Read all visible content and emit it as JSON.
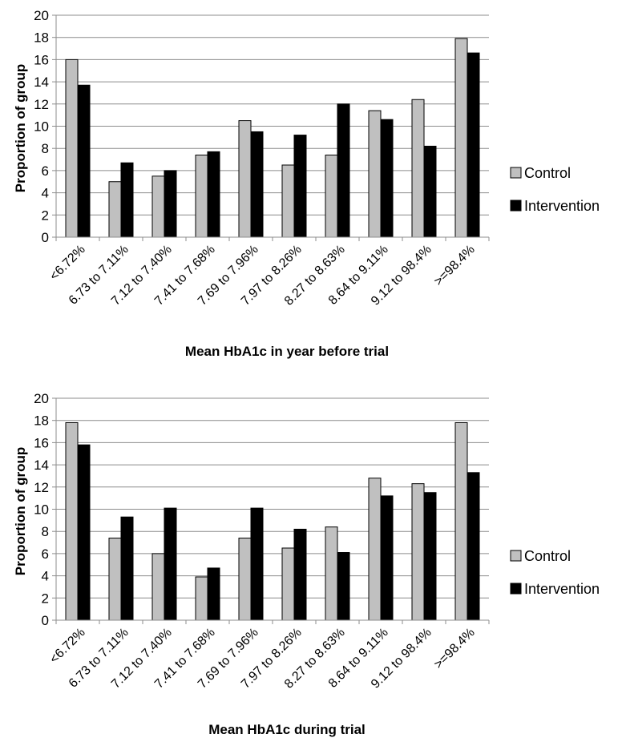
{
  "chart_data": [
    {
      "type": "bar",
      "xlabel": "Mean HbA1c in year before trial",
      "ylabel": "Proportion of group",
      "ylim": [
        0,
        20
      ],
      "yticks": [
        0,
        2,
        4,
        6,
        8,
        10,
        12,
        14,
        16,
        18,
        20
      ],
      "grid": "horizontal",
      "legend_position": "right",
      "categories": [
        "<6.72%",
        "6.73 to 7.11%",
        "7.12 to 7.40%",
        "7.41 to 7.68%",
        "7.69 to 7.96%",
        "7.97 to 8.26%",
        "8.27 to 8.63%",
        "8.64 to 9.11%",
        "9.12 to 98.4%",
        ">=98.4%"
      ],
      "series": [
        {
          "name": "Control",
          "color": "#c0c0c0",
          "values": [
            16.0,
            5.0,
            5.5,
            7.4,
            10.5,
            6.5,
            7.4,
            11.4,
            12.4,
            17.9
          ]
        },
        {
          "name": "Intervention",
          "color": "#000000",
          "values": [
            13.7,
            6.7,
            6.0,
            7.7,
            9.5,
            9.2,
            12.0,
            10.6,
            8.2,
            16.6
          ]
        }
      ]
    },
    {
      "type": "bar",
      "xlabel": "Mean HbA1c during trial",
      "ylabel": "Proportion of group",
      "ylim": [
        0,
        20
      ],
      "yticks": [
        0,
        2,
        4,
        6,
        8,
        10,
        12,
        14,
        16,
        18,
        20
      ],
      "grid": "horizontal",
      "legend_position": "right",
      "categories": [
        "<6.72%",
        "6.73 to 7.11%",
        "7.12 to 7.40%",
        "7.41 to 7.68%",
        "7.69 to 7.96%",
        "7.97 to 8.26%",
        "8.27 to 8.63%",
        "8.64 to 9.11%",
        "9.12 to 98.4%",
        ">=98.4%"
      ],
      "series": [
        {
          "name": "Control",
          "color": "#c0c0c0",
          "values": [
            17.8,
            7.4,
            6.0,
            3.9,
            7.4,
            6.5,
            8.4,
            12.8,
            12.3,
            17.8
          ]
        },
        {
          "name": "Intervention",
          "color": "#000000",
          "values": [
            15.8,
            9.3,
            10.1,
            4.7,
            10.1,
            8.2,
            6.1,
            11.2,
            11.5,
            13.3
          ]
        }
      ]
    }
  ]
}
